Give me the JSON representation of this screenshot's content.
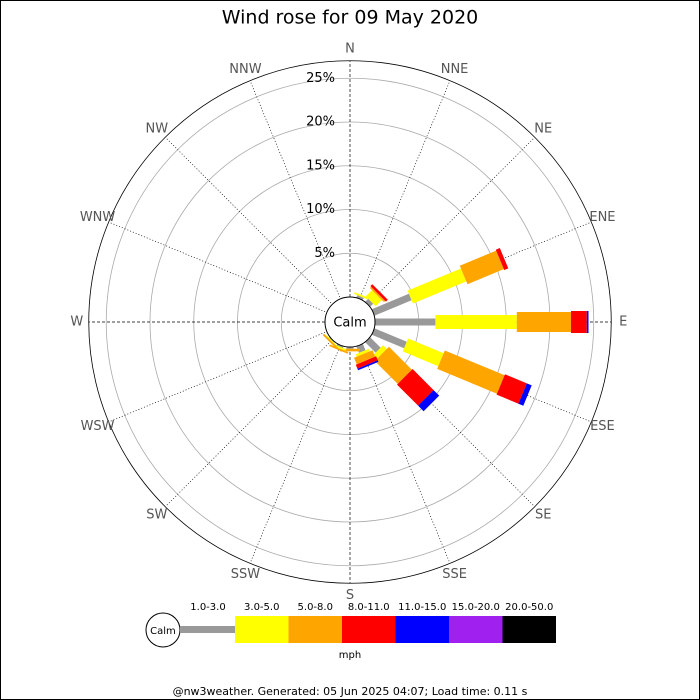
{
  "chart_data": {
    "type": "windrose",
    "title": "Wind rose for 09 May 2020",
    "categories": [
      "N",
      "NNE",
      "NE",
      "ENE",
      "E",
      "ESE",
      "SE",
      "SSE",
      "S",
      "SSW",
      "SW",
      "WSW",
      "W",
      "WNW",
      "NW",
      "NNW"
    ],
    "series": [
      {
        "name": "1.0-3.0",
        "color": "#999999",
        "values": [
          0,
          0.3,
          0.5,
          4.6,
          6.9,
          4.0,
          1.7,
          0.8,
          0.2,
          0.2,
          0.1,
          0,
          0,
          0,
          0,
          0
        ]
      },
      {
        "name": "3.0-5.0",
        "color": "#ffff00",
        "values": [
          0,
          0.2,
          1.0,
          6.6,
          9.3,
          4.4,
          0.6,
          0.3,
          0,
          0.2,
          0.1,
          0,
          0,
          0,
          0,
          0
        ]
      },
      {
        "name": "5.0-8.0",
        "color": "#ffa500",
        "values": [
          0,
          0,
          0.2,
          4.5,
          6.2,
          7.4,
          3.7,
          0.8,
          0.3,
          0.2,
          0.2,
          0,
          0,
          0,
          0,
          0
        ]
      },
      {
        "name": "8.0-11.0",
        "color": "#ff0000",
        "values": [
          0,
          0,
          0.3,
          0.5,
          1.8,
          2.7,
          3.4,
          0.5,
          0,
          0,
          0,
          0,
          0,
          0,
          0,
          0
        ]
      },
      {
        "name": "11.0-15.0",
        "color": "#0000ff",
        "values": [
          0,
          0,
          0,
          0,
          0.2,
          0.6,
          0.9,
          0.2,
          0,
          0,
          0,
          0,
          0,
          0,
          0,
          0
        ]
      },
      {
        "name": "15.0-20.0",
        "color": "#a020f0",
        "values": [
          0,
          0,
          0,
          0,
          0,
          0,
          0,
          0,
          0,
          0,
          0,
          0,
          0,
          0,
          0,
          0
        ]
      },
      {
        "name": "20.0-50.0",
        "color": "#000000",
        "values": [
          0,
          0,
          0,
          0,
          0,
          0,
          0,
          0,
          0,
          0,
          0,
          0,
          0,
          0,
          0,
          0
        ]
      }
    ],
    "rlim": [
      0,
      27
    ],
    "rticks": [
      {
        "value": 5,
        "label": "5%"
      },
      {
        "value": 10,
        "label": "10%"
      },
      {
        "value": 15,
        "label": "15%"
      },
      {
        "value": 20,
        "label": "20%"
      },
      {
        "value": 25,
        "label": "25%"
      }
    ],
    "calm_label": "Calm",
    "units_label": "mph"
  },
  "footer": "@nw3weather. Generated: 05 Jun 2025 04:07; Load time: 0.11 s"
}
